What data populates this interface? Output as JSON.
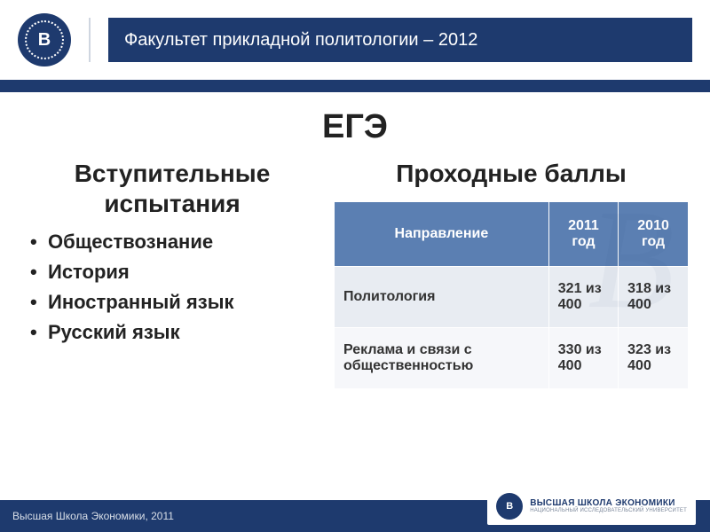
{
  "header": {
    "logo_letter": "В",
    "title": "Факультет прикладной политологии – 2012"
  },
  "main": {
    "title": "ЕГЭ",
    "left": {
      "heading": "Вступительные испытания",
      "exams": [
        "Обществознание",
        "История",
        "Иностранный язык",
        "Русский язык"
      ]
    },
    "right": {
      "heading": "Проходные баллы",
      "table": {
        "type": "table",
        "header_bg": "#5b7fb2",
        "header_color": "#ffffff",
        "row_odd_bg": "#e8ecf2",
        "row_even_bg": "#f6f7fa",
        "columns": [
          "Направление",
          "2011 год",
          "2010 год"
        ],
        "rows": [
          [
            "Политология",
            "321 из 400",
            "318 из 400"
          ],
          [
            "Реклама и связи с общественностью",
            "330 из 400",
            "323 из 400"
          ]
        ]
      }
    }
  },
  "footer": {
    "text": "Высшая Школа Экономики, 2011",
    "logo_letter": "В",
    "logo_main": "ВЫСШАЯ ШКОЛА ЭКОНОМИКИ",
    "logo_sub": "НАЦИОНАЛЬНЫЙ ИССЛЕДОВАТЕЛЬСКИЙ УНИВЕРСИТЕТ"
  },
  "colors": {
    "brand": "#1e3a6e",
    "accent": "#5b7fb2"
  }
}
